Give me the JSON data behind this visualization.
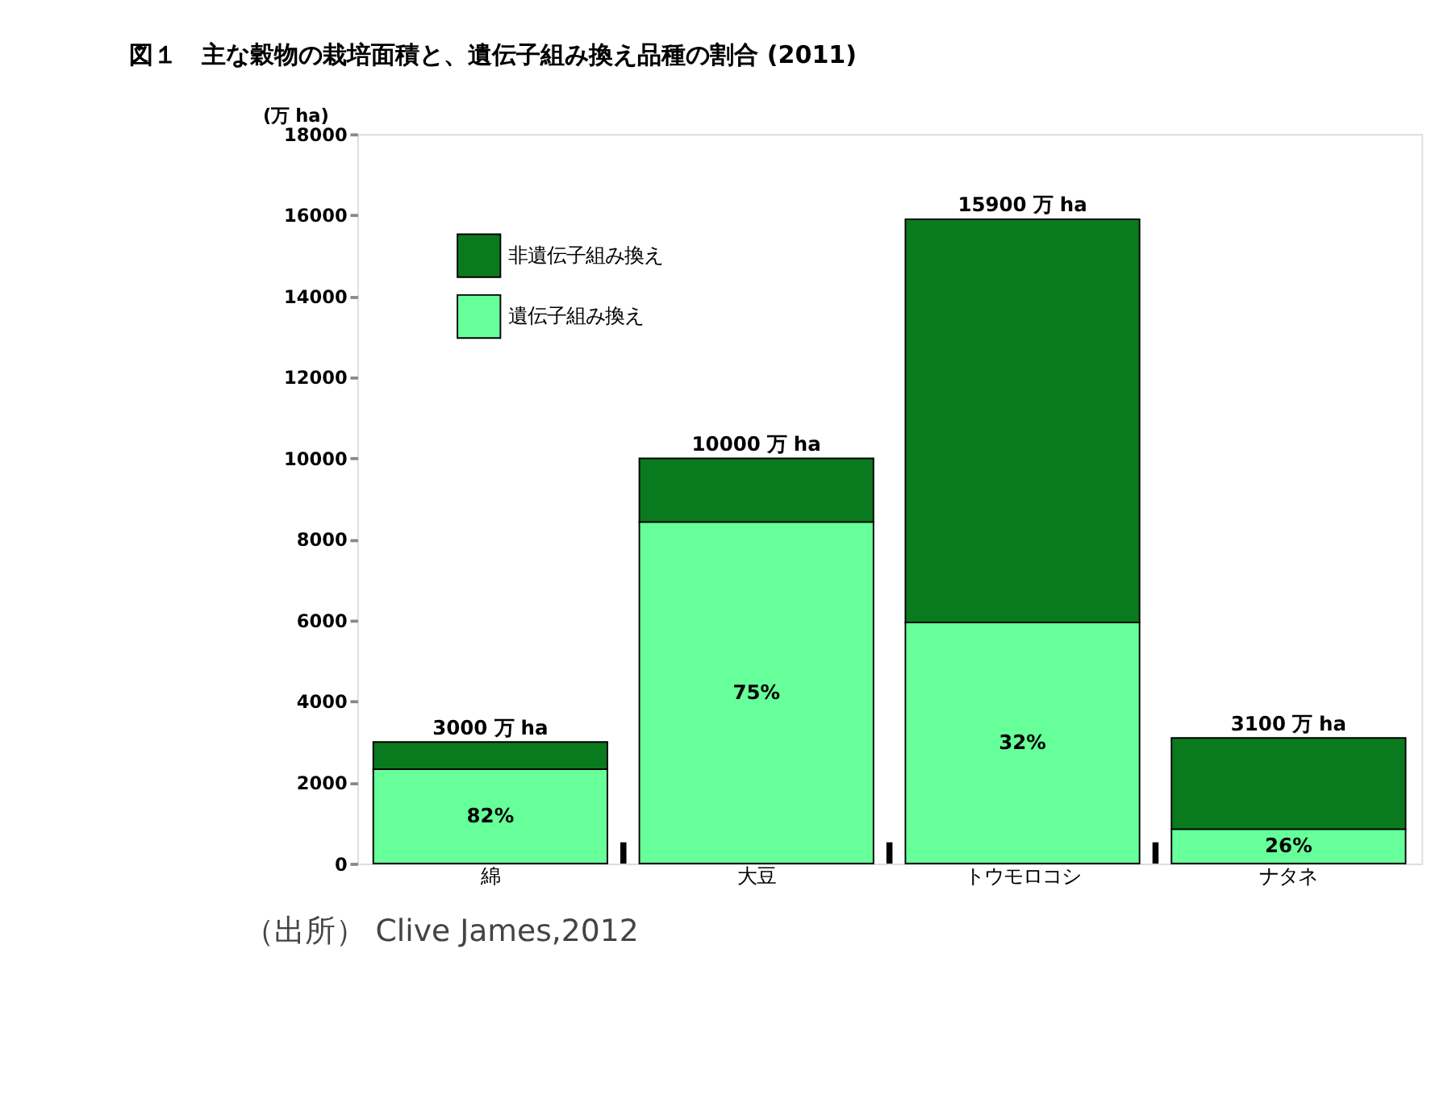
{
  "chart_data": {
    "type": "bar",
    "title": "図１　主な穀物の栽培面積と、遺伝子組み換え品種の割合 (2011)",
    "ylabel": "(万 ha)",
    "categories": [
      "綿",
      "大豆",
      "トウモロコシ",
      "ナタネ"
    ],
    "stacked": true,
    "series": [
      {
        "name": "遺伝子組み換え",
        "color": "#66ff99",
        "values": [
          2330,
          8430,
          5950,
          850
        ]
      },
      {
        "name": "非遺伝子組み換え",
        "color": "#0a7a1e",
        "values": [
          670,
          1570,
          9950,
          2250
        ]
      }
    ],
    "totals": [
      "3000 万 ha",
      "10000 万 ha",
      "15900 万 ha",
      "3100 万 ha"
    ],
    "ylim": [
      0,
      18000
    ],
    "yticks": [
      0,
      2000,
      4000,
      6000,
      8000,
      10000,
      12000,
      14000,
      16000,
      18000
    ],
    "grid": false,
    "legend": "top left",
    "annotations": [
      "82%",
      "75%",
      "32%",
      "26%",
      "（出所） Clive James,2012"
    ]
  }
}
